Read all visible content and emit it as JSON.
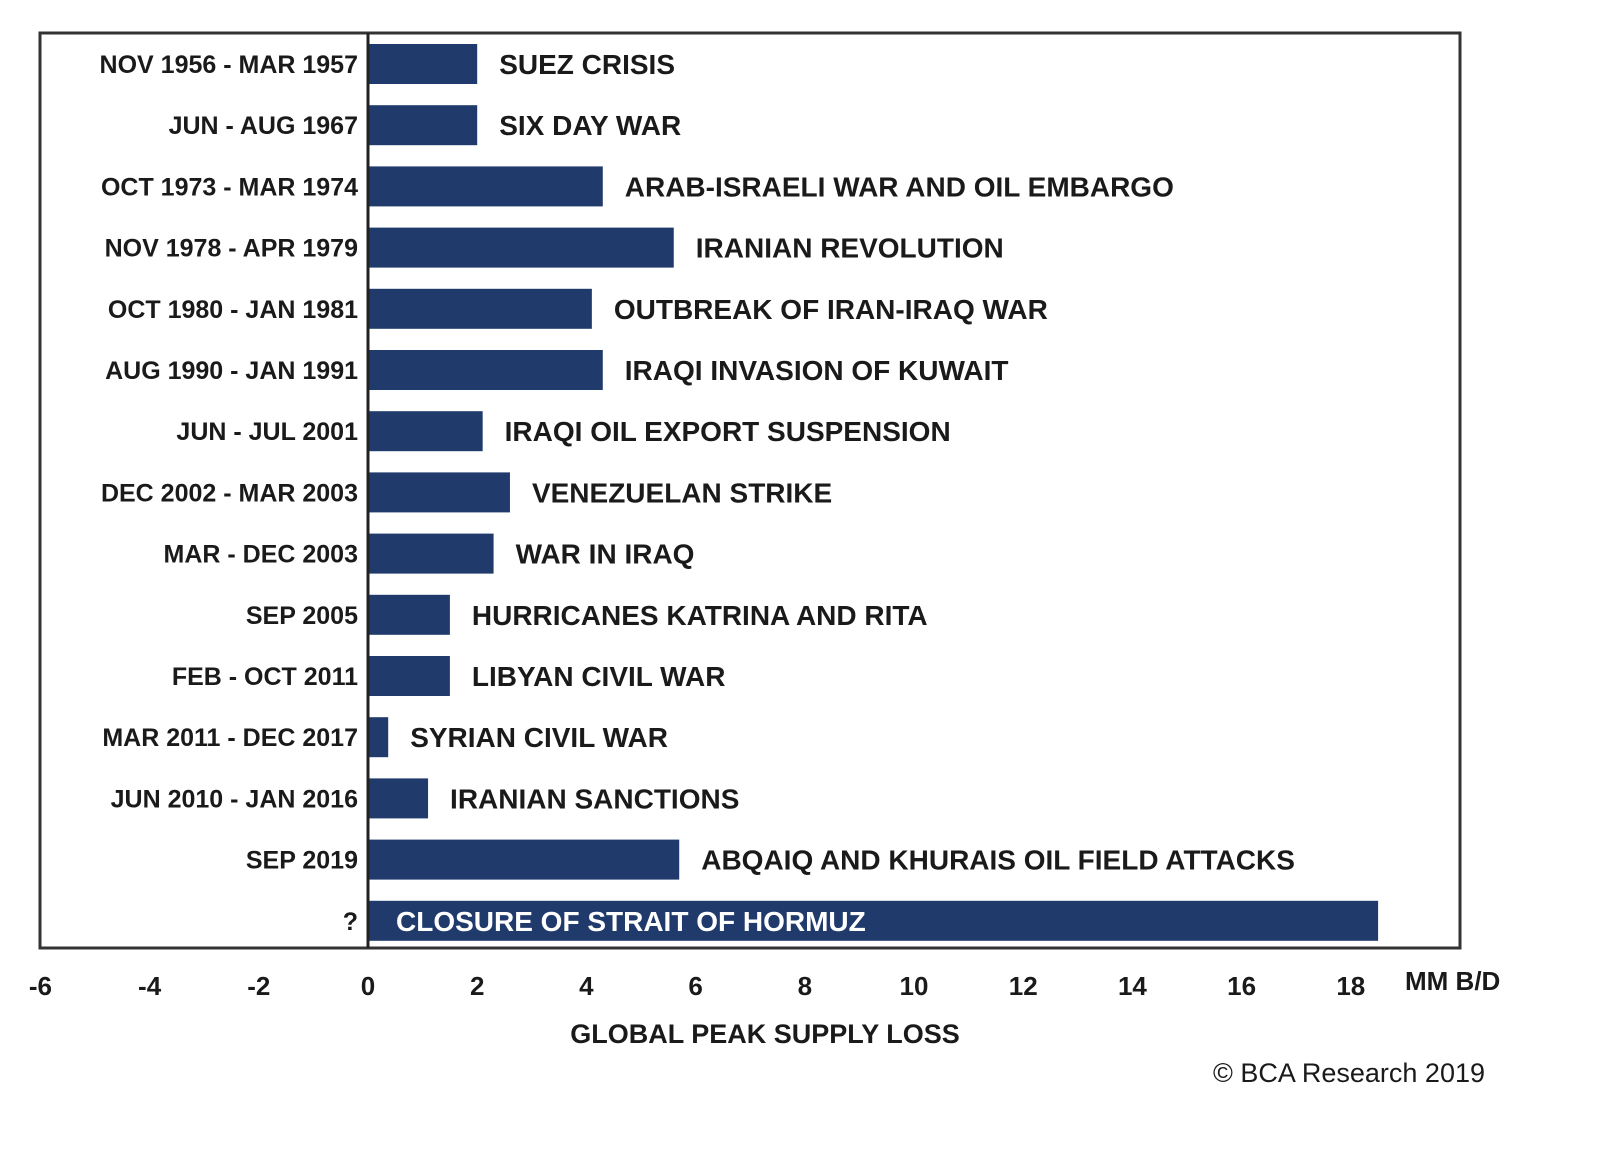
{
  "chart_data": {
    "type": "bar",
    "orientation": "horizontal",
    "xlabel": "GLOBAL PEAK SUPPLY LOSS",
    "unit_label": "MM B/D",
    "xlim": [
      -6,
      18.5
    ],
    "xticks": [
      -6,
      -4,
      -2,
      0,
      2,
      4,
      6,
      8,
      10,
      12,
      14,
      16,
      18
    ],
    "grid": false,
    "bar_color": "#1f3a6b",
    "credit": "© BCA Research 2019",
    "rows": [
      {
        "period": "NOV 1956 - MAR 1957",
        "event": "SUEZ CRISIS",
        "value": 2.0
      },
      {
        "period": "JUN - AUG 1967",
        "event": "SIX DAY WAR",
        "value": 2.0
      },
      {
        "period": "OCT 1973 - MAR 1974",
        "event": "ARAB-ISRAELI WAR AND OIL EMBARGO",
        "value": 4.3
      },
      {
        "period": "NOV 1978 - APR 1979",
        "event": "IRANIAN REVOLUTION",
        "value": 5.6
      },
      {
        "period": "OCT 1980 - JAN 1981",
        "event": "OUTBREAK OF IRAN-IRAQ WAR",
        "value": 4.1
      },
      {
        "period": "AUG 1990 - JAN 1991",
        "event": "IRAQI INVASION OF KUWAIT",
        "value": 4.3
      },
      {
        "period": "JUN - JUL 2001",
        "event": "IRAQI OIL EXPORT SUSPENSION",
        "value": 2.1
      },
      {
        "period": "DEC 2002 - MAR 2003",
        "event": "VENEZUELAN STRIKE",
        "value": 2.6
      },
      {
        "period": "MAR - DEC 2003",
        "event": "WAR IN IRAQ",
        "value": 2.3
      },
      {
        "period": "SEP 2005",
        "event": "HURRICANES KATRINA AND RITA",
        "value": 1.5
      },
      {
        "period": "FEB - OCT 2011",
        "event": "LIBYAN CIVIL WAR",
        "value": 1.5
      },
      {
        "period": "MAR 2011 - DEC 2017",
        "event": "SYRIAN CIVIL WAR",
        "value": 0.37
      },
      {
        "period": "JUN 2010 - JAN 2016",
        "event": "IRANIAN SANCTIONS",
        "value": 1.1
      },
      {
        "period": "SEP 2019",
        "event": "ABQAIQ AND KHURAIS OIL FIELD ATTACKS",
        "value": 5.7
      },
      {
        "period": "?",
        "event": "CLOSURE OF STRAIT OF HORMUZ",
        "value": 18.5,
        "label_inside": true
      }
    ]
  }
}
